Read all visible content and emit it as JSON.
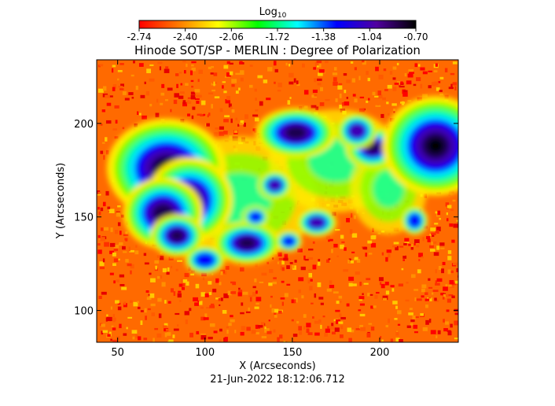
{
  "chart_data": {
    "type": "heatmap",
    "title": "Hinode SOT/SP - MERLIN : Degree of Polarization",
    "xlabel": "X (Arcseconds)",
    "ylabel": "Y (Arcseconds)",
    "xlim": [
      38,
      245
    ],
    "ylim": [
      83,
      234
    ],
    "xticks": [
      50,
      100,
      150,
      200
    ],
    "yticks": [
      100,
      150,
      200
    ],
    "colorbar": {
      "label": "Log",
      "label_subscript": "10",
      "ticks": [
        "-2.74",
        "-2.40",
        "-2.06",
        "-1.72",
        "-1.38",
        "-1.04",
        "-0.70"
      ],
      "range": [
        -2.74,
        -0.7
      ],
      "colors": [
        "#ff0000",
        "#ff7a00",
        "#ffff00",
        "#00ff00",
        "#00ffff",
        "#0000ff",
        "#5000a0",
        "#000000"
      ]
    },
    "features": [
      {
        "name": "sunspot",
        "x": 78,
        "y": 176,
        "rx": 18,
        "ry": 14,
        "level": 1.0
      },
      {
        "name": "sunspot",
        "x": 91,
        "y": 159,
        "rx": 13,
        "ry": 12,
        "level": 0.95
      },
      {
        "name": "sunspot",
        "x": 76,
        "y": 152,
        "rx": 12,
        "ry": 10,
        "level": 0.8
      },
      {
        "name": "pore",
        "x": 84,
        "y": 140,
        "rx": 8,
        "ry": 6,
        "level": 0.8
      },
      {
        "name": "pore",
        "x": 124,
        "y": 136,
        "rx": 10,
        "ry": 6,
        "level": 0.85
      },
      {
        "name": "pore",
        "x": 152,
        "y": 195,
        "rx": 12,
        "ry": 7,
        "level": 0.85
      },
      {
        "name": "pore",
        "x": 196,
        "y": 187,
        "rx": 8,
        "ry": 6,
        "level": 0.85
      },
      {
        "name": "pore",
        "x": 187,
        "y": 196,
        "rx": 6,
        "ry": 5,
        "level": 0.7
      },
      {
        "name": "sunspot",
        "x": 232,
        "y": 188,
        "rx": 16,
        "ry": 14,
        "level": 1.0
      },
      {
        "name": "pore",
        "x": 140,
        "y": 167,
        "rx": 5,
        "ry": 4,
        "level": 0.7
      },
      {
        "name": "pore",
        "x": 164,
        "y": 147,
        "rx": 6,
        "ry": 4,
        "level": 0.7
      },
      {
        "name": "pore",
        "x": 100,
        "y": 127,
        "rx": 6,
        "ry": 4,
        "level": 0.6
      },
      {
        "name": "pore",
        "x": 129,
        "y": 150,
        "rx": 4,
        "ry": 3,
        "level": 0.6
      },
      {
        "name": "pore",
        "x": 148,
        "y": 137,
        "rx": 4,
        "ry": 3,
        "level": 0.55
      },
      {
        "name": "pore",
        "x": 220,
        "y": 148,
        "rx": 4,
        "ry": 4,
        "level": 0.6
      },
      {
        "name": "plage",
        "x": 120,
        "y": 160,
        "rx": 40,
        "ry": 30,
        "level": 0.45
      },
      {
        "name": "plage",
        "x": 175,
        "y": 180,
        "rx": 35,
        "ry": 25,
        "level": 0.4
      },
      {
        "name": "plage",
        "x": 205,
        "y": 165,
        "rx": 20,
        "ry": 22,
        "level": 0.4
      }
    ]
  },
  "footer": {
    "timestamp": "21-Jun-2022 18:12:06.712"
  }
}
